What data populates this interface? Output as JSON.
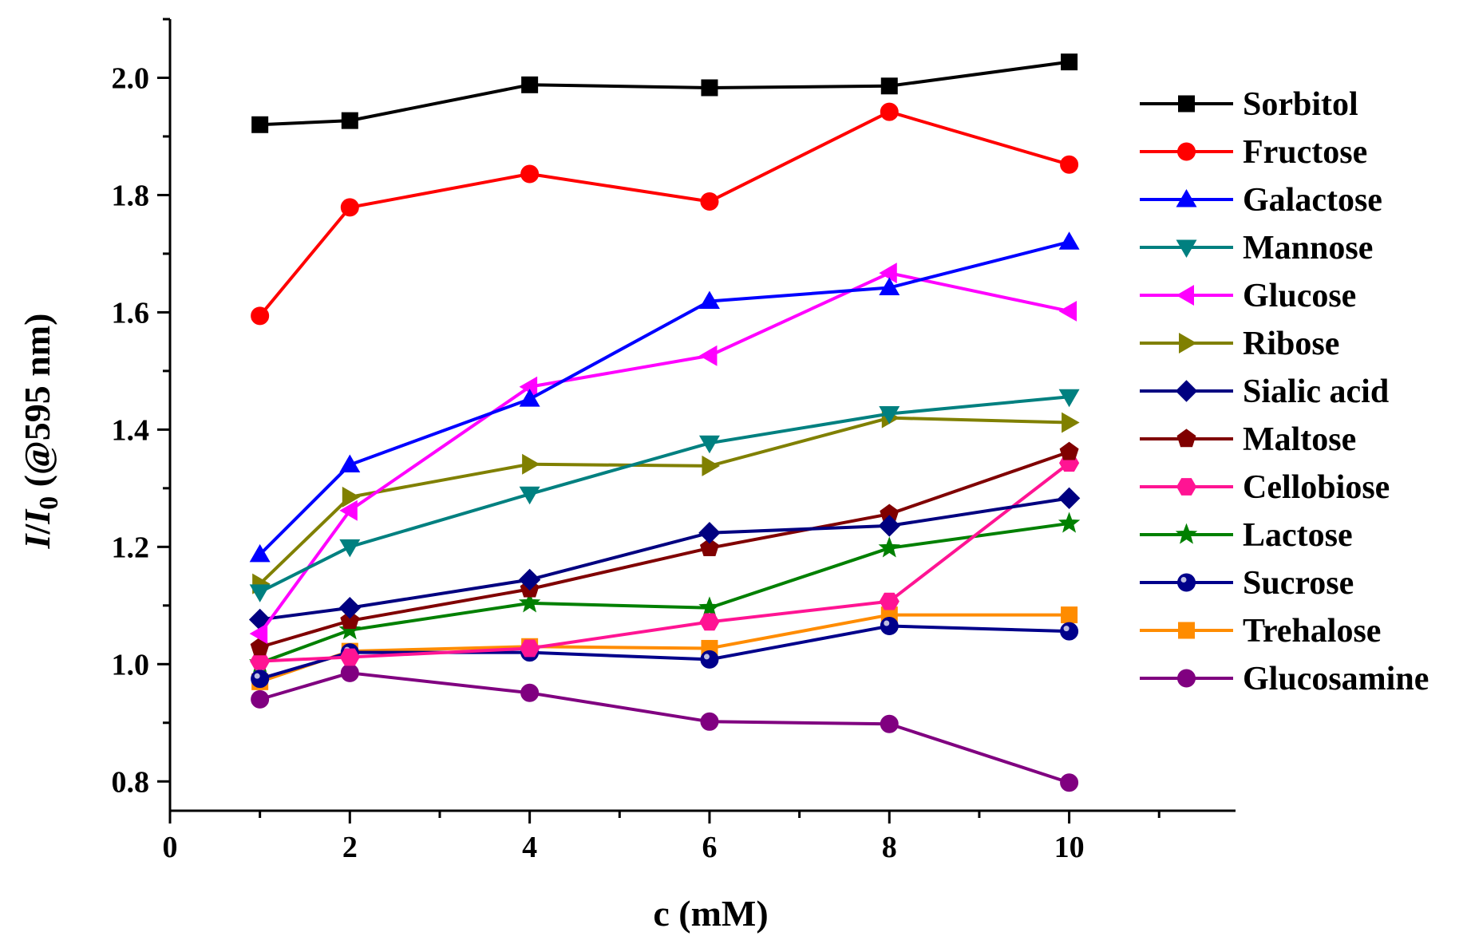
{
  "chart_data": {
    "type": "line",
    "xlabel": "c (mM)",
    "ylabel": {
      "I_num": "I",
      "slash": "/",
      "I_den": "I",
      "sub": "0",
      "rest": " (@595 nm)"
    },
    "xlim": [
      0,
      11.85
    ],
    "ylim": [
      0.75,
      2.1
    ],
    "xticks_major": [
      0,
      2,
      4,
      6,
      8,
      10
    ],
    "xticks_minor": [
      1,
      3,
      5,
      7,
      9,
      11
    ],
    "yticks_major": [
      0.8,
      1.0,
      1.2,
      1.4,
      1.6,
      1.8,
      2.0
    ],
    "yticks_minor": [
      0.9,
      1.1,
      1.3,
      1.5,
      1.7,
      1.9,
      2.1
    ],
    "xtick_labels": [
      "0",
      "2",
      "4",
      "6",
      "8",
      "10"
    ],
    "ytick_labels": [
      "0.8",
      "1.0",
      "1.2",
      "1.4",
      "1.6",
      "1.8",
      "2.0"
    ],
    "grid": false,
    "legend_position": "right",
    "x": [
      1,
      2,
      4,
      6,
      8,
      10
    ],
    "series": [
      {
        "name": "Sorbitol",
        "color": "#000000",
        "marker": "square",
        "values": [
          1.92,
          1.927,
          1.988,
          1.983,
          1.986,
          2.027
        ]
      },
      {
        "name": "Fructose",
        "color": "#ff0000",
        "marker": "circle",
        "values": [
          1.594,
          1.779,
          1.836,
          1.789,
          1.942,
          1.852
        ]
      },
      {
        "name": "Galactose",
        "color": "#0000ff",
        "marker": "triangle-up",
        "values": [
          1.187,
          1.34,
          1.452,
          1.619,
          1.642,
          1.72
        ]
      },
      {
        "name": "Mannose",
        "color": "#008080",
        "marker": "triangle-down",
        "values": [
          1.123,
          1.2,
          1.29,
          1.377,
          1.427,
          1.456
        ]
      },
      {
        "name": "Glucose",
        "color": "#ff00ff",
        "marker": "triangle-left",
        "values": [
          1.052,
          1.262,
          1.473,
          1.526,
          1.667,
          1.602
        ]
      },
      {
        "name": "Ribose",
        "color": "#808000",
        "marker": "triangle-right",
        "values": [
          1.137,
          1.285,
          1.341,
          1.338,
          1.42,
          1.412
        ]
      },
      {
        "name": "Sialic acid",
        "color": "#000080",
        "marker": "diamond",
        "values": [
          1.076,
          1.096,
          1.144,
          1.224,
          1.236,
          1.283
        ]
      },
      {
        "name": "Maltose",
        "color": "#800000",
        "marker": "pentagon",
        "values": [
          1.029,
          1.074,
          1.128,
          1.198,
          1.256,
          1.362
        ]
      },
      {
        "name": "Cellobiose",
        "color": "#ff1493",
        "marker": "hexagon",
        "values": [
          1.005,
          1.012,
          1.027,
          1.072,
          1.107,
          1.343
        ]
      },
      {
        "name": "Lactose",
        "color": "#008000",
        "marker": "star",
        "values": [
          1.002,
          1.058,
          1.104,
          1.096,
          1.198,
          1.24
        ]
      },
      {
        "name": "Sucrose",
        "color": "#00008b",
        "marker": "sphere",
        "values": [
          0.975,
          1.02,
          1.02,
          1.008,
          1.065,
          1.056
        ]
      },
      {
        "name": "Trehalose",
        "color": "#ff8c00",
        "marker": "square",
        "values": [
          0.97,
          1.022,
          1.03,
          1.027,
          1.084,
          1.084
        ]
      },
      {
        "name": "Glucosamine",
        "color": "#800080",
        "marker": "circle",
        "values": [
          0.94,
          0.985,
          0.951,
          0.902,
          0.898,
          0.798
        ]
      }
    ]
  }
}
